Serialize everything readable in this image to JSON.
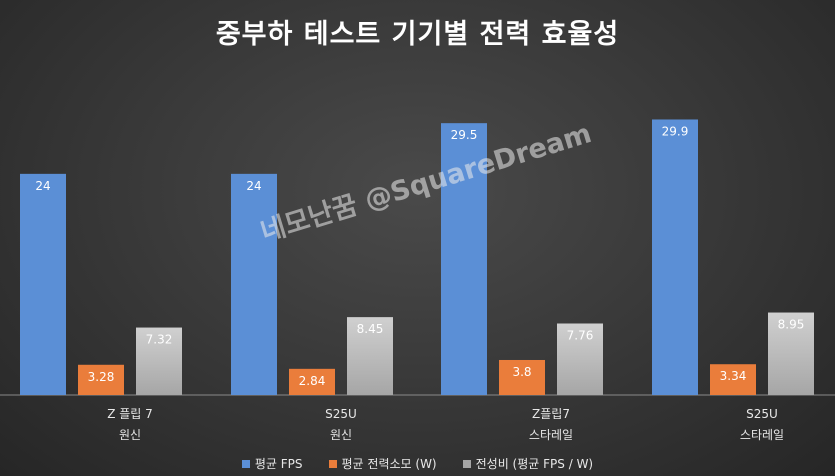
{
  "title": "중부하 테스트 기기별 전력 효율성",
  "watermark": "네모난꿈 @SquareDream",
  "chart_data": {
    "type": "bar",
    "title": "중부하 테스트 기기별 전력 효율성",
    "categories": [
      [
        "Z 플립 7",
        "원신"
      ],
      [
        "S25U",
        "원신"
      ],
      [
        "Z플립7",
        "스타레일"
      ],
      [
        "S25U",
        "스타레일"
      ]
    ],
    "series": [
      {
        "name": "평균 FPS",
        "values": [
          24,
          24,
          29.5,
          29.9
        ],
        "labels": [
          "24",
          "24",
          "29.5",
          "29.9"
        ],
        "color": "#5b8fd6"
      },
      {
        "name": "평균 전력소모 (W)",
        "values": [
          3.28,
          2.84,
          3.8,
          3.34
        ],
        "labels": [
          "3.28",
          "2.84",
          "3.8",
          "3.34"
        ],
        "color": "#ea7d3b"
      },
      {
        "name": "전성비 (평균 FPS / W)",
        "values": [
          7.32,
          8.45,
          7.76,
          8.95
        ],
        "labels": [
          "7.32",
          "8.45",
          "7.76",
          "8.95"
        ],
        "color": "#a6a6a6"
      }
    ],
    "ylim": [
      0,
      31
    ],
    "grid": false,
    "legend_position": "bottom"
  }
}
